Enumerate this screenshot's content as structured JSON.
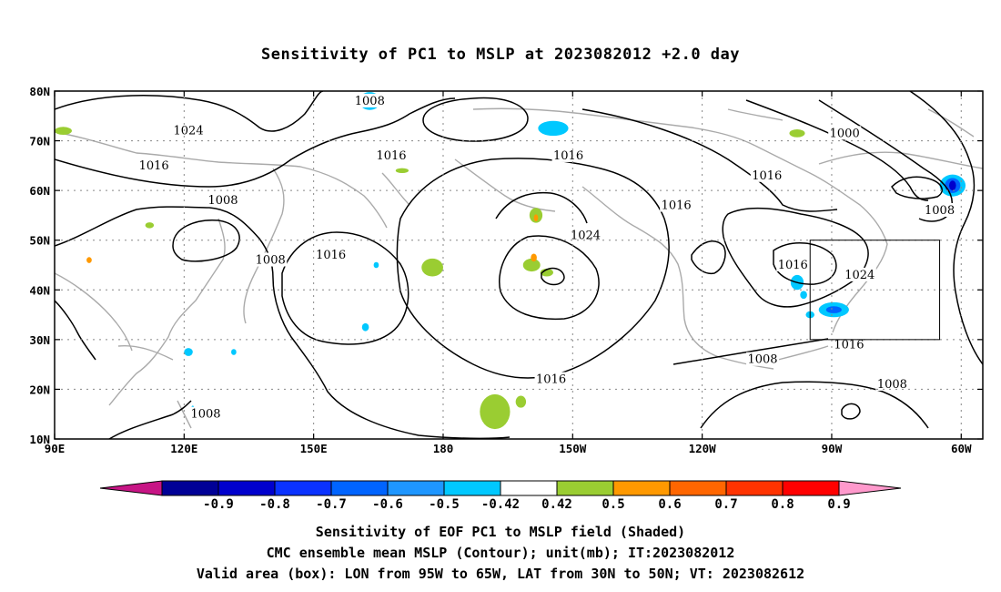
{
  "title": "Sensitivity of PC1 to MSLP at 2023082012 +2.0 day",
  "map": {
    "lon_range": [
      90,
      305
    ],
    "lat_range": [
      10,
      80
    ],
    "lat_ticks": [
      {
        "lat": 80,
        "label": "80N"
      },
      {
        "lat": 70,
        "label": "70N"
      },
      {
        "lat": 60,
        "label": "60N"
      },
      {
        "lat": 50,
        "label": "50N"
      },
      {
        "lat": 40,
        "label": "40N"
      },
      {
        "lat": 30,
        "label": "30N"
      },
      {
        "lat": 20,
        "label": "20N"
      },
      {
        "lat": 10,
        "label": "10N"
      }
    ],
    "lon_ticks": [
      {
        "lon": 90,
        "label": "90E"
      },
      {
        "lon": 120,
        "label": "120E"
      },
      {
        "lon": 150,
        "label": "150E"
      },
      {
        "lon": 180,
        "label": "180"
      },
      {
        "lon": 210,
        "label": "150W"
      },
      {
        "lon": 240,
        "label": "120W"
      },
      {
        "lon": 270,
        "label": "90W"
      },
      {
        "lon": 300,
        "label": "60W"
      }
    ],
    "grid": true,
    "valid_box": {
      "lon": [
        265,
        295
      ],
      "lat": [
        30,
        50
      ]
    },
    "contour_labels": [
      {
        "text": "1008",
        "lon": 163,
        "lat": 78
      },
      {
        "text": "1024",
        "lon": 121,
        "lat": 72
      },
      {
        "text": "1000",
        "lon": 273,
        "lat": 71.5
      },
      {
        "text": "1016",
        "lon": 113,
        "lat": 65
      },
      {
        "text": "1016",
        "lon": 168,
        "lat": 67
      },
      {
        "text": "1016",
        "lon": 209,
        "lat": 67
      },
      {
        "text": "1016",
        "lon": 255,
        "lat": 63
      },
      {
        "text": "1008",
        "lon": 295,
        "lat": 56
      },
      {
        "text": "1008",
        "lon": 129,
        "lat": 58
      },
      {
        "text": "1016",
        "lon": 234,
        "lat": 57
      },
      {
        "text": "1024",
        "lon": 213,
        "lat": 51
      },
      {
        "text": "1008",
        "lon": 140,
        "lat": 46
      },
      {
        "text": "1016",
        "lon": 154,
        "lat": 47
      },
      {
        "text": "1016",
        "lon": 261,
        "lat": 45
      },
      {
        "text": "1024",
        "lon": 276.5,
        "lat": 43
      },
      {
        "text": "1016",
        "lon": 274,
        "lat": 29
      },
      {
        "text": "1008",
        "lon": 254,
        "lat": 26
      },
      {
        "text": "1016",
        "lon": 205,
        "lat": 22
      },
      {
        "text": "1008",
        "lon": 284,
        "lat": 21
      },
      {
        "text": "1008",
        "lon": 125,
        "lat": 15
      }
    ],
    "shaded_areas": [
      {
        "lon": 163,
        "lat": 78,
        "rx": 2.5,
        "ry": 1.8,
        "color": "#00c8ff"
      },
      {
        "lon": 205.5,
        "lat": 72.5,
        "rx": 3.5,
        "ry": 1.5,
        "color": "#00c8ff"
      },
      {
        "lon": 262,
        "lat": 71.5,
        "rx": 1.8,
        "ry": 0.8,
        "color": "#9acd32"
      },
      {
        "lon": 92,
        "lat": 72,
        "rx": 2,
        "ry": 0.8,
        "color": "#9acd32"
      },
      {
        "lon": 170.5,
        "lat": 64,
        "rx": 1.5,
        "ry": 0.5,
        "color": "#9acd32"
      },
      {
        "lon": 298,
        "lat": 61,
        "rx": 3,
        "ry": 2.2,
        "color": "#00c8ff"
      },
      {
        "lon": 298,
        "lat": 61,
        "rx": 1.8,
        "ry": 1.5,
        "color": "#0064ff"
      },
      {
        "lon": 298,
        "lat": 61,
        "rx": 0.8,
        "ry": 1,
        "color": "#0000cd"
      },
      {
        "lon": 201.5,
        "lat": 55,
        "rx": 1.5,
        "ry": 1.5,
        "color": "#9acd32"
      },
      {
        "lon": 201.5,
        "lat": 54.5,
        "rx": 0.5,
        "ry": 0.7,
        "color": "#ff9900"
      },
      {
        "lon": 200.5,
        "lat": 45,
        "rx": 2,
        "ry": 1.3,
        "color": "#9acd32"
      },
      {
        "lon": 201,
        "lat": 46.5,
        "rx": 0.7,
        "ry": 0.8,
        "color": "#ff9900"
      },
      {
        "lon": 204,
        "lat": 43.5,
        "rx": 1.5,
        "ry": 0.8,
        "color": "#9acd32"
      },
      {
        "lon": 177.5,
        "lat": 44.5,
        "rx": 2.5,
        "ry": 1.8,
        "color": "#9acd32"
      },
      {
        "lon": 112,
        "lat": 53,
        "rx": 1,
        "ry": 0.6,
        "color": "#9acd32"
      },
      {
        "lon": 98,
        "lat": 46,
        "rx": 0.6,
        "ry": 0.6,
        "color": "#ff9900"
      },
      {
        "lon": 164.5,
        "lat": 45,
        "rx": 0.6,
        "ry": 0.6,
        "color": "#00c8ff"
      },
      {
        "lon": 162,
        "lat": 32.5,
        "rx": 0.8,
        "ry": 0.8,
        "color": "#00c8ff"
      },
      {
        "lon": 121,
        "lat": 27.5,
        "rx": 1,
        "ry": 0.8,
        "color": "#00c8ff"
      },
      {
        "lon": 131.5,
        "lat": 27.5,
        "rx": 0.6,
        "ry": 0.6,
        "color": "#00c8ff"
      },
      {
        "lon": 262,
        "lat": 41.5,
        "rx": 1.5,
        "ry": 1.5,
        "color": "#00c8ff"
      },
      {
        "lon": 263.5,
        "lat": 39,
        "rx": 0.8,
        "ry": 0.8,
        "color": "#00c8ff"
      },
      {
        "lon": 265,
        "lat": 35,
        "rx": 1,
        "ry": 0.7,
        "color": "#00c8ff"
      },
      {
        "lon": 270.5,
        "lat": 36,
        "rx": 3.5,
        "ry": 1.5,
        "color": "#00c8ff"
      },
      {
        "lon": 270.5,
        "lat": 36,
        "rx": 1.8,
        "ry": 0.7,
        "color": "#0064ff"
      },
      {
        "lon": 192,
        "lat": 15.5,
        "rx": 3.5,
        "ry": 3.5,
        "color": "#9acd32"
      },
      {
        "lon": 198,
        "lat": 17.5,
        "rx": 1.2,
        "ry": 1.2,
        "color": "#9acd32"
      },
      {
        "lon": 122,
        "lat": 15.5,
        "rx": 0.5,
        "ry": 1.2,
        "color": "#00c8ff"
      }
    ]
  },
  "colorbar": {
    "colors": [
      "#c71585",
      "#000096",
      "#0000cd",
      "#0a32ff",
      "#0064ff",
      "#1e96ff",
      "#00c8ff",
      "#ffffff",
      "#9acd32",
      "#ff9900",
      "#ff6600",
      "#ff3300",
      "#ff0000",
      "#ff99cc"
    ],
    "labels": [
      "-0.9",
      "-0.8",
      "-0.7",
      "-0.6",
      "-0.5",
      "-0.42",
      "0.42",
      "0.5",
      "0.6",
      "0.7",
      "0.8",
      "0.9"
    ]
  },
  "captions": {
    "line1": "Sensitivity of EOF PC1 to MSLP field (Shaded)",
    "line2": "CMC ensemble mean MSLP (Contour); unit(mb); IT:2023082012",
    "line3": "Valid area (box): LON from 95W to 65W, LAT from 30N to 50N; VT: 2023082612"
  }
}
